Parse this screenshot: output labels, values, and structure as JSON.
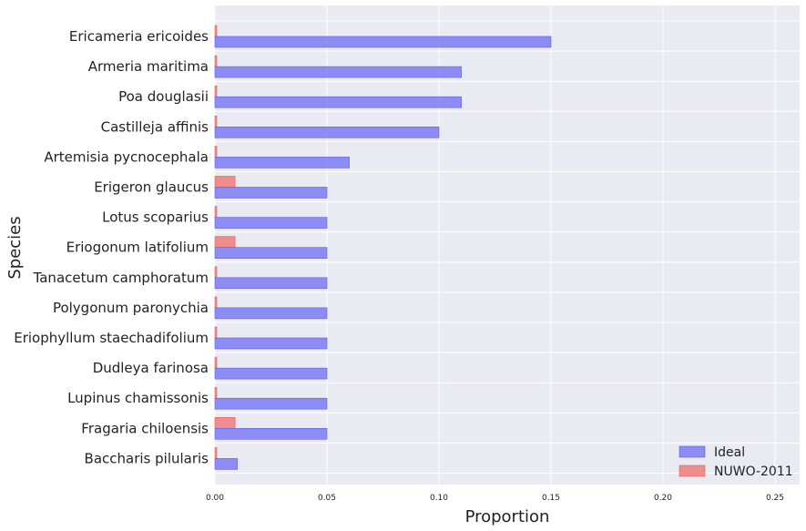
{
  "chart_data": {
    "type": "bar",
    "orientation": "horizontal",
    "categories": [
      "Ericameria ericoides",
      "Armeria maritima",
      "Poa douglasii",
      "Castilleja affinis",
      "Artemisia pycnocephala",
      "Erigeron glaucus",
      "Lotus scoparius",
      "Eriogonum latifolium",
      "Tanacetum camphoratum",
      "Polygonum paronychia",
      "Eriophyllum staechadifolium",
      "Dudleya farinosa",
      "Lupinus chamissonis",
      "Fragaria chiloensis",
      "Baccharis pilularis"
    ],
    "series": [
      {
        "name": "Ideal",
        "color": "#7B7BF4",
        "values": [
          0.15,
          0.11,
          0.11,
          0.1,
          0.06,
          0.05,
          0.05,
          0.05,
          0.05,
          0.05,
          0.05,
          0.05,
          0.05,
          0.05,
          0.01
        ]
      },
      {
        "name": "NUWO-2011",
        "color": "#F07C7C",
        "values": [
          0.0,
          0.0,
          0.0,
          0.0,
          0.0,
          0.009,
          0.0,
          0.009,
          0.0,
          0.0,
          0.0,
          0.0,
          0.0,
          0.009,
          0.0
        ]
      }
    ],
    "xlabel": "Proportion",
    "ylabel": "Species",
    "xlim": [
      0,
      0.26
    ],
    "xticks": [
      "0.00",
      "0.05",
      "0.10",
      "0.15",
      "0.20",
      "0.25"
    ],
    "grid": true,
    "legend_position": "lower-right"
  }
}
